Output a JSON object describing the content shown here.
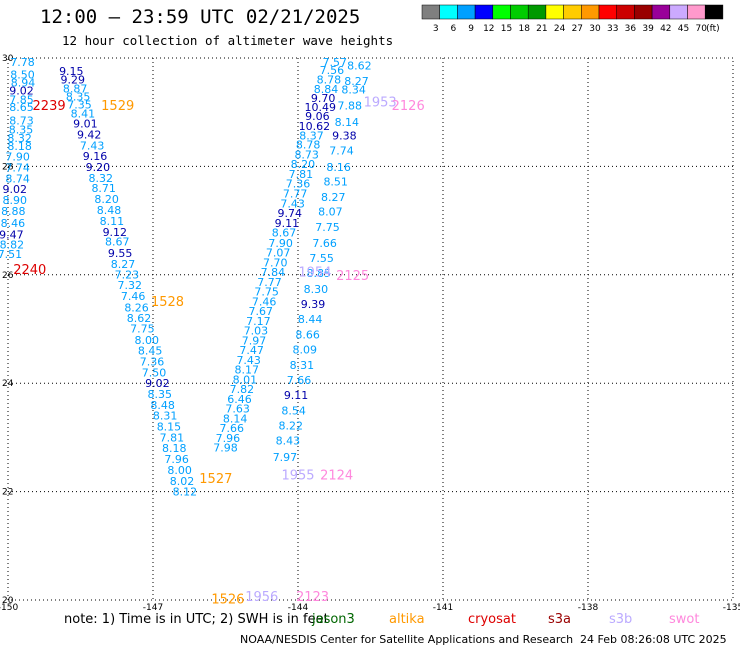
{
  "header": {
    "title": "12:00 – 23:59 UTC 02/21/2025",
    "subtitle": "12 hour collection of altimeter wave heights"
  },
  "legend": {
    "unit": "(ft)",
    "bins": [
      {
        "label": "3",
        "color": "#7f7f7f"
      },
      {
        "label": "6",
        "color": "#00ffff"
      },
      {
        "label": "9",
        "color": "#00a0ff"
      },
      {
        "label": "12",
        "color": "#0000ff"
      },
      {
        "label": "15",
        "color": "#00ff00"
      },
      {
        "label": "18",
        "color": "#00cc00"
      },
      {
        "label": "21",
        "color": "#009900"
      },
      {
        "label": "24",
        "color": "#ffff00"
      },
      {
        "label": "27",
        "color": "#ffcc00"
      },
      {
        "label": "30",
        "color": "#ff9900"
      },
      {
        "label": "33",
        "color": "#ff0000"
      },
      {
        "label": "36",
        "color": "#cc0000"
      },
      {
        "label": "39",
        "color": "#990000"
      },
      {
        "label": "42",
        "color": "#990099"
      },
      {
        "label": "45",
        "color": "#ccaaff"
      },
      {
        "label": "70",
        "color": "#ff99cc"
      },
      {
        "label": "",
        "color": "#000000"
      }
    ]
  },
  "chart_data": {
    "type": "scatter",
    "title": "12:00 – 23:59 UTC 02/21/2025",
    "xlim": [
      -150,
      -135
    ],
    "ylim": [
      20,
      30
    ],
    "xticks": [
      "-150",
      "-147",
      "-144",
      "-141",
      "-138",
      "-135"
    ],
    "yticks": [
      "20",
      "22",
      "24",
      "26",
      "28",
      "30"
    ],
    "grid": true,
    "colors": {
      "cyan": "#00a0ff",
      "navy": "#0000aa",
      "jason": "#ff9900",
      "red": "#dd0000",
      "pink": "#ff88dd",
      "lilac": "#bbaaff"
    },
    "series": [
      {
        "id": "track-west",
        "x": [
          -149.7,
          -149.7,
          -149.69,
          -149.72,
          -149.72,
          -149.72,
          -149.72,
          -149.73,
          -149.76,
          -149.76,
          -149.8,
          -149.8,
          -149.8,
          -149.86,
          -149.86,
          -149.89,
          -149.9,
          -149.93,
          -149.92,
          -149.96
        ],
        "y": [
          29.93,
          29.7,
          29.55,
          29.4,
          29.23,
          29.1,
          28.85,
          28.68,
          28.52,
          28.38,
          28.18,
          27.98,
          27.78,
          27.58,
          27.38,
          27.18,
          26.96,
          26.74,
          26.56,
          26.38
        ],
        "values": [
          "7.78",
          "8.50",
          "8.94",
          "9.02",
          "7.85",
          "8.65",
          "8.73",
          "8.35",
          "8.32",
          "8.18",
          "7.90",
          "7.74",
          "8.74",
          "9.02",
          "8.90",
          "8.88",
          "8.46",
          "9.47",
          "8.82",
          "7.51"
        ],
        "color_keys": [
          "cyan",
          "cyan",
          "cyan",
          "navy",
          "cyan",
          "cyan",
          "cyan",
          "cyan",
          "cyan",
          "cyan",
          "cyan",
          "cyan",
          "cyan",
          "navy",
          "cyan",
          "cyan",
          "cyan",
          "navy",
          "cyan",
          "cyan"
        ]
      },
      {
        "id": "track-mid",
        "x": [
          -148.69,
          -148.66,
          -148.61,
          -148.55,
          -148.52,
          -148.45,
          -148.4,
          -148.32,
          -148.26,
          -148.2,
          -148.14,
          -148.08,
          -148.02,
          -147.96,
          -147.91,
          -147.85,
          -147.79,
          -147.74,
          -147.68,
          -147.62,
          -147.54,
          -147.48,
          -147.41,
          -147.34,
          -147.29,
          -147.22,
          -147.13,
          -147.06,
          -147.02,
          -146.98,
          -146.91,
          -146.86,
          -146.8,
          -146.75,
          -146.67,
          -146.61,
          -146.56,
          -146.51,
          -146.45,
          -146.4,
          -146.34
        ],
        "y": [
          29.76,
          29.6,
          29.44,
          29.29,
          29.14,
          28.98,
          28.79,
          28.59,
          28.39,
          28.19,
          27.99,
          27.79,
          27.6,
          27.4,
          27.2,
          26.99,
          26.79,
          26.61,
          26.4,
          26.2,
          26.01,
          25.81,
          25.61,
          25.4,
          25.2,
          25.01,
          24.8,
          24.6,
          24.4,
          24.2,
          24.0,
          23.8,
          23.6,
          23.4,
          23.2,
          23.0,
          22.8,
          22.6,
          22.4,
          22.2,
          22.0
        ],
        "values": [
          "9.15",
          "9.29",
          "8.87",
          "8.35",
          "7.35",
          "8.41",
          "9.01",
          "9.42",
          "7.43",
          "9.16",
          "9.20",
          "8.32",
          "8.71",
          "8.20",
          "8.48",
          "8.11",
          "9.12",
          "8.67",
          "9.55",
          "8.27",
          "7.23",
          "7.32",
          "7.46",
          "8.26",
          "8.62",
          "7.75",
          "8.00",
          "8.45",
          "7.36",
          "7.50",
          "9.02",
          "8.35",
          "8.48",
          "8.31",
          "8.15",
          "7.81",
          "8.18",
          "7.96",
          "8.00",
          "8.02",
          "8.12"
        ],
        "color_keys": [
          "navy",
          "navy",
          "cyan",
          "cyan",
          "cyan",
          "cyan",
          "navy",
          "navy",
          "cyan",
          "navy",
          "navy",
          "cyan",
          "cyan",
          "cyan",
          "cyan",
          "cyan",
          "navy",
          "cyan",
          "navy",
          "cyan",
          "cyan",
          "cyan",
          "cyan",
          "cyan",
          "cyan",
          "cyan",
          "cyan",
          "cyan",
          "cyan",
          "cyan",
          "navy",
          "cyan",
          "cyan",
          "cyan",
          "cyan",
          "cyan",
          "cyan",
          "cyan",
          "cyan",
          "cyan",
          "cyan"
        ]
      },
      {
        "id": "track-east-down",
        "x": [
          -143.24,
          -143.3,
          -143.36,
          -143.42,
          -143.48,
          -143.54,
          -143.6,
          -143.66,
          -143.72,
          -143.79,
          -143.82,
          -143.9,
          -143.94,
          -144.0,
          -144.06,
          -144.11,
          -144.17,
          -144.23,
          -144.29,
          -144.36,
          -144.41,
          -144.47,
          -144.52,
          -144.59,
          -144.65,
          -144.7,
          -144.77,
          -144.82,
          -144.87,
          -144.91,
          -144.96,
          -145.02,
          -145.06,
          -145.1,
          -145.16,
          -145.21,
          -145.25,
          -145.3,
          -145.37,
          -145.45,
          -145.5
        ],
        "y": [
          29.93,
          29.78,
          29.6,
          29.43,
          29.26,
          29.1,
          28.93,
          28.75,
          28.57,
          28.4,
          28.22,
          28.04,
          27.86,
          27.68,
          27.5,
          27.32,
          27.14,
          26.96,
          26.78,
          26.59,
          26.41,
          26.23,
          26.05,
          25.87,
          25.69,
          25.51,
          25.33,
          25.15,
          24.97,
          24.79,
          24.61,
          24.43,
          24.25,
          24.07,
          23.89,
          23.71,
          23.53,
          23.35,
          23.17,
          22.99,
          22.81
        ],
        "values": [
          "7.57",
          "7.56",
          "8.78",
          "8.84",
          "9.70",
          "10.49",
          "9.06",
          "10.62",
          "8.37",
          "8.78",
          "8.73",
          "8.20",
          "7.81",
          "7.36",
          "7.77",
          "7.43",
          "9.74",
          "9.11",
          "8.67",
          "7.90",
          "7.07",
          "7.70",
          "7.84",
          "7.77",
          "7.75",
          "7.46",
          "7.67",
          "7.17",
          "7.03",
          "7.97",
          "7.47",
          "7.43",
          "8.17",
          "8.01",
          "7.82",
          "6.46",
          "7.63",
          "8.14",
          "7.66",
          "7.96",
          "7.98"
        ],
        "color_keys": [
          "cyan",
          "cyan",
          "cyan",
          "cyan",
          "navy",
          "navy",
          "navy",
          "navy",
          "cyan",
          "cyan",
          "cyan",
          "cyan",
          "cyan",
          "cyan",
          "cyan",
          "cyan",
          "navy",
          "navy",
          "cyan",
          "cyan",
          "cyan",
          "cyan",
          "cyan",
          "cyan",
          "cyan",
          "cyan",
          "cyan",
          "cyan",
          "cyan",
          "cyan",
          "cyan",
          "cyan",
          "cyan",
          "cyan",
          "cyan",
          "cyan",
          "cyan",
          "cyan",
          "cyan",
          "cyan",
          "cyan"
        ]
      },
      {
        "id": "track-east-up",
        "x": [
          -142.73,
          -142.79,
          -142.85,
          -142.93,
          -142.99,
          -143.04,
          -143.1,
          -143.16,
          -143.22,
          -143.27,
          -143.33,
          -143.39,
          -143.45,
          -143.51,
          -143.57,
          -143.63,
          -143.69,
          -143.75,
          -143.8,
          -143.86,
          -143.92,
          -143.98,
          -144.04,
          -144.09,
          -144.15,
          -144.21,
          -144.27
        ],
        "y": [
          29.86,
          29.58,
          29.42,
          29.12,
          28.82,
          28.57,
          28.29,
          27.99,
          27.72,
          27.44,
          27.17,
          26.88,
          26.59,
          26.31,
          26.03,
          25.74,
          25.46,
          25.18,
          24.9,
          24.62,
          24.34,
          24.06,
          23.78,
          23.5,
          23.22,
          22.94,
          22.64
        ],
        "values": [
          "8.62",
          "8.27",
          "8.34",
          "7.88",
          "8.14",
          "9.38",
          "7.74",
          "8.16",
          "8.51",
          "8.27",
          "8.07",
          "7.75",
          "7.66",
          "7.55",
          "8.85",
          "8.30",
          "9.39",
          "8.44",
          "8.66",
          "8.09",
          "8.31",
          "7.66",
          "9.11",
          "8.54",
          "8.22",
          "8.43",
          "7.97"
        ],
        "color_keys": [
          "cyan",
          "cyan",
          "cyan",
          "cyan",
          "cyan",
          "navy",
          "cyan",
          "cyan",
          "cyan",
          "cyan",
          "cyan",
          "cyan",
          "cyan",
          "cyan",
          "cyan",
          "cyan",
          "navy",
          "cyan",
          "cyan",
          "cyan",
          "cyan",
          "cyan",
          "navy",
          "cyan",
          "cyan",
          "cyan",
          "cyan"
        ]
      }
    ],
    "pass_labels": [
      {
        "text": "2239",
        "x": -149.15,
        "y": 29.13,
        "color_key": "red"
      },
      {
        "text": "1529",
        "x": -147.73,
        "y": 29.13,
        "color_key": "jason"
      },
      {
        "text": "2240",
        "x": -149.55,
        "y": 26.11,
        "color_key": "red"
      },
      {
        "text": "1528",
        "x": -146.7,
        "y": 25.52,
        "color_key": "jason"
      },
      {
        "text": "1953",
        "x": -142.3,
        "y": 29.2,
        "color_key": "lilac"
      },
      {
        "text": "2126",
        "x": -141.72,
        "y": 29.13,
        "color_key": "pink"
      },
      {
        "text": "1954",
        "x": -143.65,
        "y": 26.06,
        "color_key": "lilac"
      },
      {
        "text": "2125",
        "x": -142.87,
        "y": 26.0,
        "color_key": "pink"
      },
      {
        "text": "1527",
        "x": -145.7,
        "y": 22.25,
        "color_key": "jason"
      },
      {
        "text": "1955",
        "x": -144.0,
        "y": 22.32,
        "color_key": "lilac"
      },
      {
        "text": "2124",
        "x": -143.2,
        "y": 22.32,
        "color_key": "pink"
      },
      {
        "text": "1526",
        "x": -145.45,
        "y": 20.03,
        "color_key": "jason"
      },
      {
        "text": "1956",
        "x": -144.75,
        "y": 20.07,
        "color_key": "lilac"
      },
      {
        "text": "2123",
        "x": -143.7,
        "y": 20.07,
        "color_key": "pink"
      }
    ]
  },
  "note": {
    "text": "note:  1) Time is in UTC;  2) SWH is in feet",
    "missions": [
      {
        "label": "jason3",
        "color": "#006600"
      },
      {
        "label": "altika",
        "color": "#ff9900"
      },
      {
        "label": "cryosat",
        "color": "#dd0000"
      },
      {
        "label": "s3a",
        "color": "#990000"
      },
      {
        "label": "s3b",
        "color": "#bbaaff"
      },
      {
        "label": "swot",
        "color": "#ff88dd"
      }
    ]
  },
  "footer": {
    "credit": "NOAA/NESDIS Center for Satellite Applications and Research",
    "generated": "24 Feb 08:26:08 UTC 2025"
  }
}
